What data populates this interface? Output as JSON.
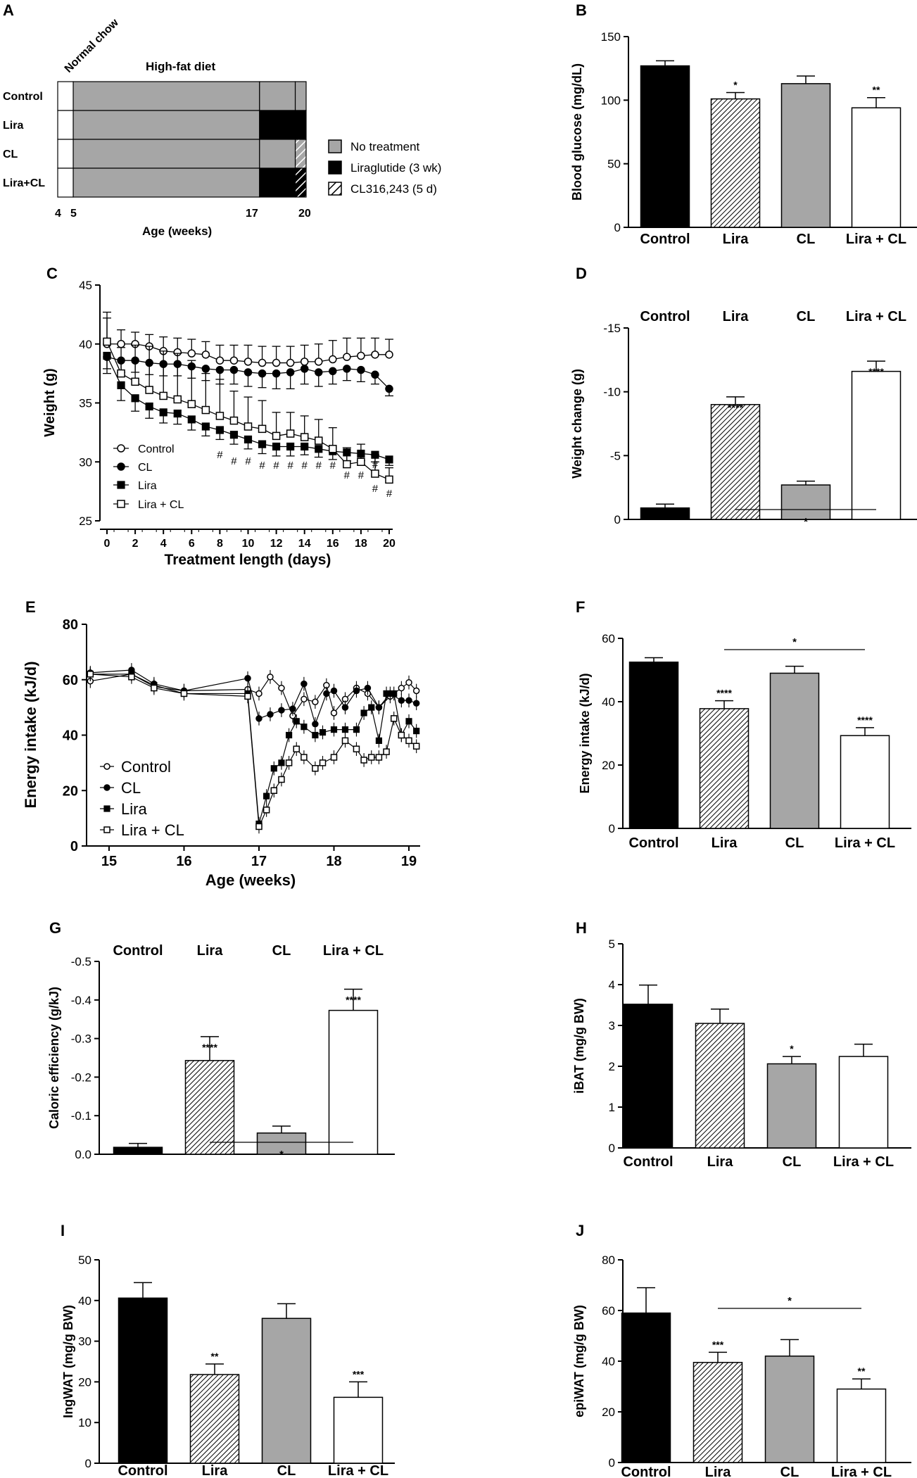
{
  "figure": {
    "panel_labels": [
      "A",
      "B",
      "C",
      "D",
      "E",
      "F",
      "G",
      "H",
      "I",
      "J"
    ]
  },
  "colors": {
    "no_treatment": "#a6a6a6",
    "liraglutide": "#000000",
    "hatch": "#ffffff",
    "control_bar": "#000000",
    "cl_bar": "#a6a6a6",
    "liracl_bar": "#ffffff"
  },
  "chart_data": [
    {
      "panel": "A",
      "type": "diagram",
      "diet_labels": {
        "normal": "Normal chow",
        "high_fat": "High-fat diet"
      },
      "rows": [
        "Control",
        "Lira",
        "CL",
        "Lira+CL"
      ],
      "segments": [
        [
          {
            "from": 5,
            "to": 17,
            "kind": "none"
          },
          {
            "from": 17,
            "to": 19.3,
            "kind": "none"
          },
          {
            "from": 19.3,
            "to": 20,
            "kind": "none"
          }
        ],
        [
          {
            "from": 5,
            "to": 17,
            "kind": "none"
          },
          {
            "from": 17,
            "to": 20,
            "kind": "lira"
          }
        ],
        [
          {
            "from": 5,
            "to": 17,
            "kind": "none"
          },
          {
            "from": 17,
            "to": 19.3,
            "kind": "none"
          },
          {
            "from": 19.3,
            "to": 20,
            "kind": "cl"
          }
        ],
        [
          {
            "from": 5,
            "to": 17,
            "kind": "none"
          },
          {
            "from": 17,
            "to": 19.3,
            "kind": "lira"
          },
          {
            "from": 19.3,
            "to": 20,
            "kind": "liracl"
          }
        ]
      ],
      "x_ticks": [
        "4",
        "5",
        "17",
        "20"
      ],
      "xlabel": "Age (weeks)",
      "legend": [
        "No treatment",
        "Liraglutide (3 wk)",
        "CL316,243 (5 d)"
      ]
    },
    {
      "panel": "B",
      "type": "bar",
      "categories": [
        "Control",
        "Lira",
        "CL",
        "Lira + CL"
      ],
      "values": [
        127,
        101,
        113,
        94
      ],
      "errors": [
        4,
        5,
        6,
        8
      ],
      "stars": [
        "",
        "*",
        "",
        "**"
      ],
      "ylabel": "Blood glucose (mg/dL)",
      "ylim": [
        0,
        150
      ],
      "yticks": [
        0,
        50,
        100,
        150
      ],
      "tick_labels": [
        "0",
        "50",
        "100",
        "150"
      ]
    },
    {
      "panel": "C",
      "type": "line",
      "xlabel": "Treatment length (days)",
      "ylabel": "Weight (g)",
      "xlim": [
        0,
        20
      ],
      "ylim": [
        25,
        45
      ],
      "xticks": [
        "0",
        "2",
        "4",
        "6",
        "8",
        "10",
        "12",
        "14",
        "16",
        "18",
        "20"
      ],
      "yticks": [
        "25",
        "30",
        "35",
        "40",
        "45"
      ],
      "x": [
        0,
        1,
        2,
        3,
        4,
        5,
        6,
        7,
        8,
        9,
        10,
        11,
        12,
        13,
        14,
        15,
        16,
        17,
        18,
        19,
        20
      ],
      "series": [
        {
          "name": "Control",
          "marker": "open-circle",
          "values": [
            40.0,
            40.0,
            40.0,
            39.8,
            39.4,
            39.3,
            39.2,
            39.1,
            38.6,
            38.6,
            38.5,
            38.4,
            38.4,
            38.4,
            38.5,
            38.5,
            38.7,
            38.9,
            39.0,
            39.1,
            39.1
          ]
        },
        {
          "name": "CL",
          "marker": "filled-circle",
          "values": [
            38.9,
            38.6,
            38.6,
            38.4,
            38.3,
            38.3,
            38.1,
            37.9,
            37.8,
            37.8,
            37.6,
            37.5,
            37.5,
            37.6,
            37.9,
            37.6,
            37.7,
            37.9,
            37.8,
            37.4,
            36.2
          ]
        },
        {
          "name": "Lira",
          "marker": "filled-square",
          "values": [
            39.0,
            36.5,
            35.4,
            34.7,
            34.2,
            34.1,
            33.6,
            33.0,
            32.7,
            32.3,
            31.9,
            31.5,
            31.3,
            31.3,
            31.3,
            31.1,
            30.9,
            30.8,
            30.7,
            30.6,
            30.2
          ]
        },
        {
          "name": "Lira + CL",
          "marker": "open-square",
          "values": [
            40.2,
            37.5,
            36.8,
            36.1,
            35.6,
            35.3,
            34.9,
            34.4,
            33.9,
            33.5,
            33.0,
            32.8,
            32.2,
            32.4,
            32.1,
            31.8,
            31.1,
            29.8,
            30.0,
            29.0,
            28.5
          ]
        }
      ],
      "errors": [
        [
          2.7,
          1.2,
          1.0,
          1.0,
          1.2,
          1.2,
          1.2,
          1.1,
          1.3,
          1.3,
          1.4,
          1.4,
          1.4,
          1.4,
          1.4,
          1.5,
          1.6,
          1.6,
          1.5,
          1.4,
          1.3
        ],
        [
          1.0,
          1.0,
          1.0,
          1.0,
          1.0,
          1.0,
          1.0,
          1.0,
          1.2,
          1.2,
          1.2,
          1.2,
          1.3,
          1.4,
          1.3,
          1.2,
          1.1,
          1.0,
          1.0,
          0.8,
          0.6
        ],
        [
          1.5,
          1.3,
          1.1,
          1.0,
          0.9,
          0.9,
          0.9,
          0.8,
          0.8,
          0.8,
          0.8,
          0.8,
          0.8,
          0.8,
          0.7,
          0.7,
          0.7,
          0.7,
          0.6,
          0.6,
          0.5
        ],
        [
          2.0,
          2.2,
          3.1,
          3.7,
          3.8,
          3.9,
          3.7,
          3.1,
          3.1,
          2.5,
          2.5,
          2.4,
          2.0,
          1.8,
          1.8,
          1.8,
          1.8,
          1.4,
          1.5,
          1.6,
          1.0
        ]
      ],
      "hash_marks": {
        "days": [
          8,
          9,
          10,
          11,
          12,
          13,
          14,
          15,
          16,
          17,
          18,
          19,
          20
        ],
        "rows": [
          [
            8,
            9,
            10
          ],
          [
            9,
            10,
            11,
            12,
            13,
            14,
            15,
            16,
            17,
            18,
            19
          ],
          [
            17,
            18,
            19
          ],
          [
            19
          ],
          [
            20
          ]
        ]
      },
      "hash_symbol": "#"
    },
    {
      "panel": "D",
      "type": "bar",
      "categories": [
        "Control",
        "Lira",
        "CL",
        "Lira + CL"
      ],
      "values": [
        -0.9,
        -9.0,
        -2.7,
        -11.6
      ],
      "errors": [
        0.3,
        0.6,
        0.3,
        0.8
      ],
      "stars": [
        "",
        "****",
        "",
        "****"
      ],
      "bracket": {
        "from": 1,
        "to": 3,
        "label": "*"
      },
      "ylabel": "Weight change (g)",
      "ylim": [
        -15,
        0
      ],
      "yticks": [
        0,
        -5,
        -10,
        -15
      ],
      "tick_labels": [
        "0",
        "-5",
        "-10",
        "-15"
      ]
    },
    {
      "panel": "E",
      "type": "line",
      "xlabel": "Age (weeks)",
      "ylabel": "Energy intake (kJ/d)",
      "xlim": [
        14.7,
        19.15
      ],
      "ylim": [
        0,
        80
      ],
      "xticks": [
        "15",
        "16",
        "17",
        "18",
        "19"
      ],
      "yticks": [
        "0",
        "20",
        "40",
        "60",
        "80"
      ],
      "series": [
        {
          "name": "Control",
          "marker": "open-circle",
          "x": [
            14.75,
            15.3,
            15.6,
            16.0,
            16.85,
            17.0,
            17.15,
            17.3,
            17.45,
            17.6,
            17.75,
            17.9,
            18.0,
            18.15,
            18.3,
            18.45,
            18.6,
            18.75,
            18.9,
            19.0,
            19.1
          ],
          "values": [
            59.5,
            62,
            57.5,
            56,
            56.5,
            55,
            61,
            57,
            47,
            53,
            52,
            58,
            48,
            53,
            57,
            55,
            50,
            54,
            57,
            59,
            56
          ]
        },
        {
          "name": "CL",
          "marker": "filled-circle",
          "x": [
            14.75,
            15.3,
            15.6,
            16.0,
            16.85,
            17.0,
            17.15,
            17.3,
            17.45,
            17.6,
            17.75,
            17.9,
            18.0,
            18.15,
            18.3,
            18.45,
            18.6,
            18.75,
            18.9,
            19.0,
            19.1
          ],
          "values": [
            62.5,
            63.5,
            58.5,
            56,
            60.5,
            46,
            47.5,
            49,
            49.5,
            58.5,
            44,
            55,
            56,
            50,
            56,
            57,
            50,
            55,
            52.5,
            52.5,
            51.5
          ]
        },
        {
          "name": "Lira",
          "marker": "filled-square",
          "x": [
            14.75,
            15.3,
            15.6,
            16.0,
            16.85,
            17.0,
            17.1,
            17.2,
            17.3,
            17.4,
            17.5,
            17.6,
            17.75,
            17.85,
            18.0,
            18.15,
            18.3,
            18.4,
            18.5,
            18.6,
            18.7,
            18.8,
            18.9,
            19.0,
            19.1
          ],
          "values": [
            62,
            62,
            58,
            55,
            55,
            8,
            18,
            28,
            30,
            40,
            45,
            43,
            40,
            41,
            42,
            42,
            42,
            48,
            50,
            38,
            55,
            55,
            40,
            45,
            41.5
          ]
        },
        {
          "name": "Lira + CL",
          "marker": "open-square",
          "x": [
            14.75,
            15.3,
            15.6,
            16.0,
            16.85,
            17.0,
            17.1,
            17.2,
            17.3,
            17.4,
            17.5,
            17.6,
            17.75,
            17.85,
            18.0,
            18.15,
            18.3,
            18.4,
            18.5,
            18.6,
            18.7,
            18.8,
            18.9,
            19.0,
            19.1
          ],
          "values": [
            62,
            61,
            57,
            55,
            54,
            7,
            13,
            20,
            24,
            30,
            35,
            32,
            28,
            30,
            32,
            38,
            35,
            31,
            32,
            32,
            34,
            46,
            40,
            38,
            36
          ]
        }
      ]
    },
    {
      "panel": "F",
      "type": "bar",
      "categories": [
        "Control",
        "Lira",
        "CL",
        "Lira + CL"
      ],
      "values": [
        52.5,
        37.8,
        49,
        29.3
      ],
      "errors": [
        1.4,
        2.5,
        2.2,
        2.5
      ],
      "stars": [
        "",
        "****",
        "",
        "****"
      ],
      "bracket": {
        "from": 1,
        "to": 3,
        "label": "*"
      },
      "ylabel": "Energy intake (kJ/d)",
      "ylim": [
        0,
        60
      ],
      "yticks": [
        0,
        20,
        40,
        60
      ],
      "tick_labels": [
        "0",
        "20",
        "40",
        "60"
      ]
    },
    {
      "panel": "G",
      "type": "bar",
      "categories": [
        "Control",
        "Lira",
        "CL",
        "Lira + CL"
      ],
      "values": [
        -0.018,
        -0.243,
        -0.055,
        -0.373
      ],
      "errors": [
        0.01,
        0.062,
        0.018,
        0.055
      ],
      "stars": [
        "",
        "****",
        "",
        "****"
      ],
      "bracket": {
        "from": 1,
        "to": 3,
        "label": "*"
      },
      "ylabel": "Caloric efficiency (g/kJ)",
      "ylim": [
        -0.5,
        0
      ],
      "yticks": [
        0,
        -0.1,
        -0.2,
        -0.3,
        -0.4,
        -0.5
      ],
      "tick_labels": [
        "0.0",
        "-0.1",
        "-0.2",
        "-0.3",
        "-0.4",
        "-0.5"
      ]
    },
    {
      "panel": "H",
      "type": "bar",
      "categories": [
        "Control",
        "Lira",
        "CL",
        "Lira + CL"
      ],
      "values": [
        3.52,
        3.05,
        2.06,
        2.24
      ],
      "errors": [
        0.47,
        0.35,
        0.18,
        0.3
      ],
      "stars": [
        "",
        "",
        "*",
        ""
      ],
      "ylabel": "iBAT (mg/g BW)",
      "ylim": [
        0,
        5
      ],
      "yticks": [
        0,
        1,
        2,
        3,
        4,
        5
      ],
      "tick_labels": [
        "0",
        "1",
        "2",
        "3",
        "4",
        "5"
      ]
    },
    {
      "panel": "I",
      "type": "bar",
      "categories": [
        "Control",
        "Lira",
        "CL",
        "Lira + CL"
      ],
      "values": [
        40.6,
        21.8,
        35.6,
        16.2
      ],
      "errors": [
        3.8,
        2.6,
        3.6,
        3.8
      ],
      "stars": [
        "",
        "**",
        "",
        "***"
      ],
      "ylabel": "IngWAT (mg/g BW)",
      "ylim": [
        0,
        50
      ],
      "yticks": [
        0,
        10,
        20,
        30,
        40,
        50
      ],
      "tick_labels": [
        "0",
        "10",
        "20",
        "30",
        "40",
        "50"
      ]
    },
    {
      "panel": "J",
      "type": "bar",
      "categories": [
        "Control",
        "Lira",
        "CL",
        "Lira + CL"
      ],
      "values": [
        59,
        39.5,
        42,
        29
      ],
      "errors": [
        10,
        4,
        6.5,
        4
      ],
      "stars": [
        "",
        "***",
        "",
        "**"
      ],
      "bracket": {
        "from": 1,
        "to": 3,
        "label": "*"
      },
      "ylabel": "epiWAT (mg/g BW)",
      "ylim": [
        0,
        80
      ],
      "yticks": [
        0,
        20,
        40,
        60,
        80
      ],
      "tick_labels": [
        "0",
        "20",
        "40",
        "60",
        "80"
      ]
    }
  ]
}
